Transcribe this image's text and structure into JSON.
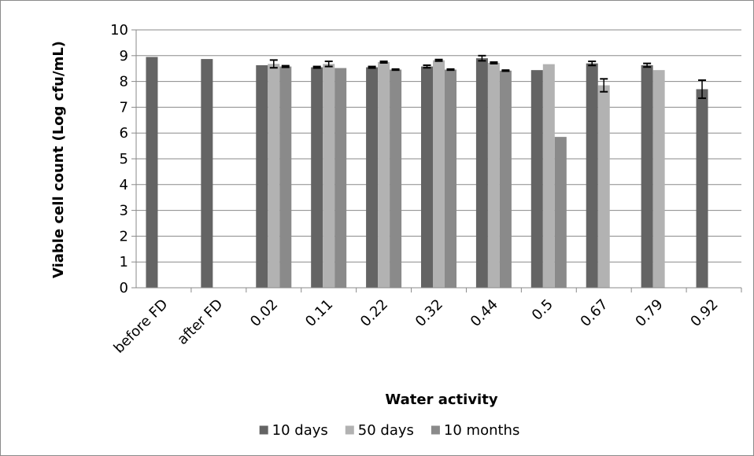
{
  "chart_data": {
    "type": "bar",
    "xlabel": "Water activity",
    "ylabel": "Viable cell count (Log cfu/mL)",
    "ylim": [
      0,
      10
    ],
    "yticks": [
      "0",
      "1",
      "2",
      "3",
      "4",
      "5",
      "6",
      "7",
      "8",
      "9",
      "10"
    ],
    "grid": true,
    "legend_position": "bottom",
    "categories": [
      "before FD",
      "after FD",
      "0.02",
      "0.11",
      "0.22",
      "0.32",
      "0.44",
      "0.5",
      "0.67",
      "0.79",
      "0.92"
    ],
    "series": [
      {
        "name": "10 days",
        "color": "#646464",
        "values": [
          8.95,
          8.87,
          8.63,
          8.55,
          8.55,
          8.58,
          8.9,
          8.44,
          8.7,
          8.63,
          7.7
        ],
        "errors": [
          0,
          0,
          0,
          0.03,
          0.03,
          0.05,
          0.1,
          0,
          0.08,
          0.07,
          0.35
        ]
      },
      {
        "name": "50 days",
        "color": "#b2b2b2",
        "values": [
          null,
          null,
          8.68,
          8.68,
          8.75,
          8.82,
          8.72,
          8.67,
          7.85,
          8.44,
          null
        ],
        "errors": [
          0,
          0,
          0.15,
          0.1,
          0.03,
          0.03,
          0.03,
          0,
          0.25,
          0,
          0
        ]
      },
      {
        "name": "10 months",
        "color": "#8a8a8a",
        "values": [
          null,
          null,
          8.58,
          8.52,
          8.46,
          8.46,
          8.42,
          5.85,
          null,
          null,
          null
        ],
        "errors": [
          0,
          0,
          0.03,
          0,
          0.02,
          0.02,
          0.02,
          0,
          0,
          0,
          0
        ]
      }
    ]
  }
}
